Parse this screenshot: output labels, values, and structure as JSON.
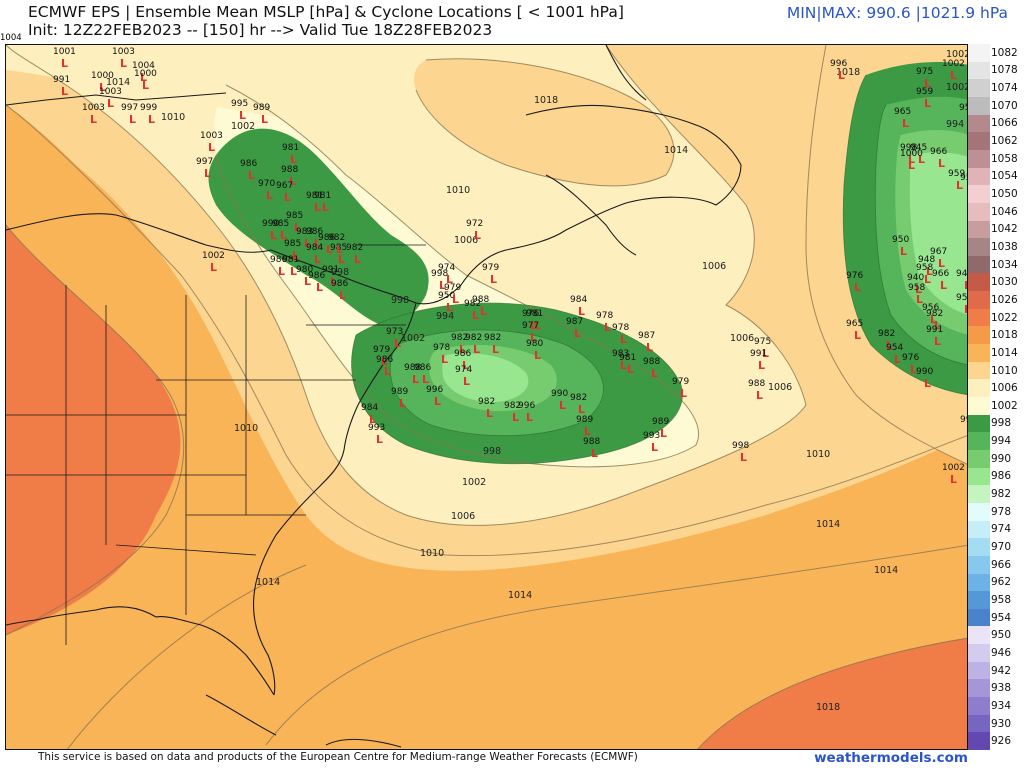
{
  "header": {
    "title": "ECMWF EPS | Ensemble Mean MSLP [hPa] & Cyclone Locations [ < 1001 hPa]",
    "init": "Init: 12Z22FEB2023 -- [150] hr --> Valid Tue 18Z28FEB2023",
    "minmax": "MIN|MAX: 990.6 |1021.9 hPa",
    "corner_value": "1004"
  },
  "footer": {
    "source": "This service is based on data and products of the European Centre for Medium-range Weather Forecasts (ECMWF)",
    "brand": "weathermodels.com"
  },
  "colorbar": {
    "levels": [
      "1082",
      "1078",
      "1074",
      "1070",
      "1066",
      "1062",
      "1058",
      "1054",
      "1050",
      "1046",
      "1042",
      "1038",
      "1034",
      "1030",
      "1026",
      "1022",
      "1018",
      "1014",
      "1010",
      "1006",
      "1002",
      "998",
      "994",
      "990",
      "986",
      "982",
      "978",
      "974",
      "970",
      "966",
      "962",
      "958",
      "954",
      "950",
      "946",
      "942",
      "938",
      "934",
      "930",
      "926"
    ],
    "colors": [
      "#f4f4f4",
      "#e4e4e4",
      "#d0d0d0",
      "#bcbcbc",
      "#b3898e",
      "#a47478",
      "#bf8f96",
      "#e0b3b8",
      "#f3cfd2",
      "#e6bcbc",
      "#c89d9d",
      "#a58585",
      "#906a6a",
      "#c45b48",
      "#e06b4a",
      "#f07c48",
      "#f59a48",
      "#f9b458",
      "#fcd590",
      "#fdefbe",
      "#fefad4",
      "#3c9a44",
      "#56b45a",
      "#78cc70",
      "#98e690",
      "#c4f4c0",
      "#e2fbfb",
      "#c6eef8",
      "#a4dcf4",
      "#86c8ee",
      "#6cb2e6",
      "#5598d8",
      "#4a82cc",
      "#e9e4f6",
      "#d4ccee",
      "#bdb2e4",
      "#a596d8",
      "#8e7ccc",
      "#7766c0",
      "#6248b0"
    ]
  },
  "map": {
    "contour_labels": [
      "1018",
      "1014",
      "1010",
      "1006",
      "1002",
      "998",
      "994",
      "1006",
      "1006",
      "1002",
      "1006",
      "1010",
      "1014",
      "1010",
      "1014",
      "1010",
      "1014",
      "1018",
      "998",
      "1002",
      "994",
      "1002",
      "1006",
      "1010",
      "1014",
      "1018",
      "998",
      "1002",
      "1014"
    ],
    "cyclones": [
      {
        "v": "1001"
      },
      {
        "v": "1003"
      },
      {
        "v": "991"
      },
      {
        "v": "1000"
      },
      {
        "v": "1004"
      },
      {
        "v": "1000"
      },
      {
        "v": "1003"
      },
      {
        "v": "1003"
      },
      {
        "v": "997"
      },
      {
        "v": "999"
      },
      {
        "v": "995"
      },
      {
        "v": "989"
      },
      {
        "v": "1003"
      },
      {
        "v": "997"
      },
      {
        "v": "981"
      },
      {
        "v": "986"
      },
      {
        "v": "988"
      },
      {
        "v": "970"
      },
      {
        "v": "967"
      },
      {
        "v": "981"
      },
      {
        "v": "981"
      },
      {
        "v": "985"
      },
      {
        "v": "990"
      },
      {
        "v": "985"
      },
      {
        "v": "983"
      },
      {
        "v": "986"
      },
      {
        "v": "986"
      },
      {
        "v": "985"
      },
      {
        "v": "984"
      },
      {
        "v": "985"
      },
      {
        "v": "982"
      },
      {
        "v": "982"
      },
      {
        "v": "1002"
      },
      {
        "v": "986"
      },
      {
        "v": "981"
      },
      {
        "v": "980"
      },
      {
        "v": "986"
      },
      {
        "v": "991"
      },
      {
        "v": "986"
      },
      {
        "v": "998"
      },
      {
        "v": "972"
      },
      {
        "v": "974"
      },
      {
        "v": "979"
      },
      {
        "v": "950"
      },
      {
        "v": "979"
      },
      {
        "v": "982"
      },
      {
        "v": "988"
      },
      {
        "v": "984"
      },
      {
        "v": "976"
      },
      {
        "v": "981"
      },
      {
        "v": "987"
      },
      {
        "v": "978"
      },
      {
        "v": "977"
      },
      {
        "v": "978"
      },
      {
        "v": "980"
      },
      {
        "v": "987"
      },
      {
        "v": "983"
      },
      {
        "v": "981"
      },
      {
        "v": "988"
      },
      {
        "v": "982"
      },
      {
        "v": "982"
      },
      {
        "v": "982"
      },
      {
        "v": "978"
      },
      {
        "v": "986"
      },
      {
        "v": "974"
      },
      {
        "v": "979"
      },
      {
        "v": "973"
      },
      {
        "v": "986"
      },
      {
        "v": "988"
      },
      {
        "v": "986"
      },
      {
        "v": "996"
      },
      {
        "v": "989"
      },
      {
        "v": "982"
      },
      {
        "v": "982"
      },
      {
        "v": "990"
      },
      {
        "v": "982"
      },
      {
        "v": "996"
      },
      {
        "v": "989"
      },
      {
        "v": "984"
      },
      {
        "v": "993"
      },
      {
        "v": "988"
      },
      {
        "v": "979"
      },
      {
        "v": "989"
      },
      {
        "v": "993"
      },
      {
        "v": "975"
      },
      {
        "v": "991"
      },
      {
        "v": "988"
      },
      {
        "v": "998"
      },
      {
        "v": "996"
      },
      {
        "v": "975"
      },
      {
        "v": "959"
      },
      {
        "v": "959"
      },
      {
        "v": "965"
      },
      {
        "v": "998"
      },
      {
        "v": "945"
      },
      {
        "v": "1000"
      },
      {
        "v": "966"
      },
      {
        "v": "959"
      },
      {
        "v": "951"
      },
      {
        "v": "950"
      },
      {
        "v": "967"
      },
      {
        "v": "948"
      },
      {
        "v": "958"
      },
      {
        "v": "966"
      },
      {
        "v": "940"
      },
      {
        "v": "958"
      },
      {
        "v": "948"
      },
      {
        "v": "956"
      },
      {
        "v": "982"
      },
      {
        "v": "950"
      },
      {
        "v": "976"
      },
      {
        "v": "991"
      },
      {
        "v": "965"
      },
      {
        "v": "982"
      },
      {
        "v": "954"
      },
      {
        "v": "976"
      },
      {
        "v": "990"
      },
      {
        "v": "994"
      },
      {
        "v": "1002"
      },
      {
        "v": "1002"
      }
    ]
  }
}
